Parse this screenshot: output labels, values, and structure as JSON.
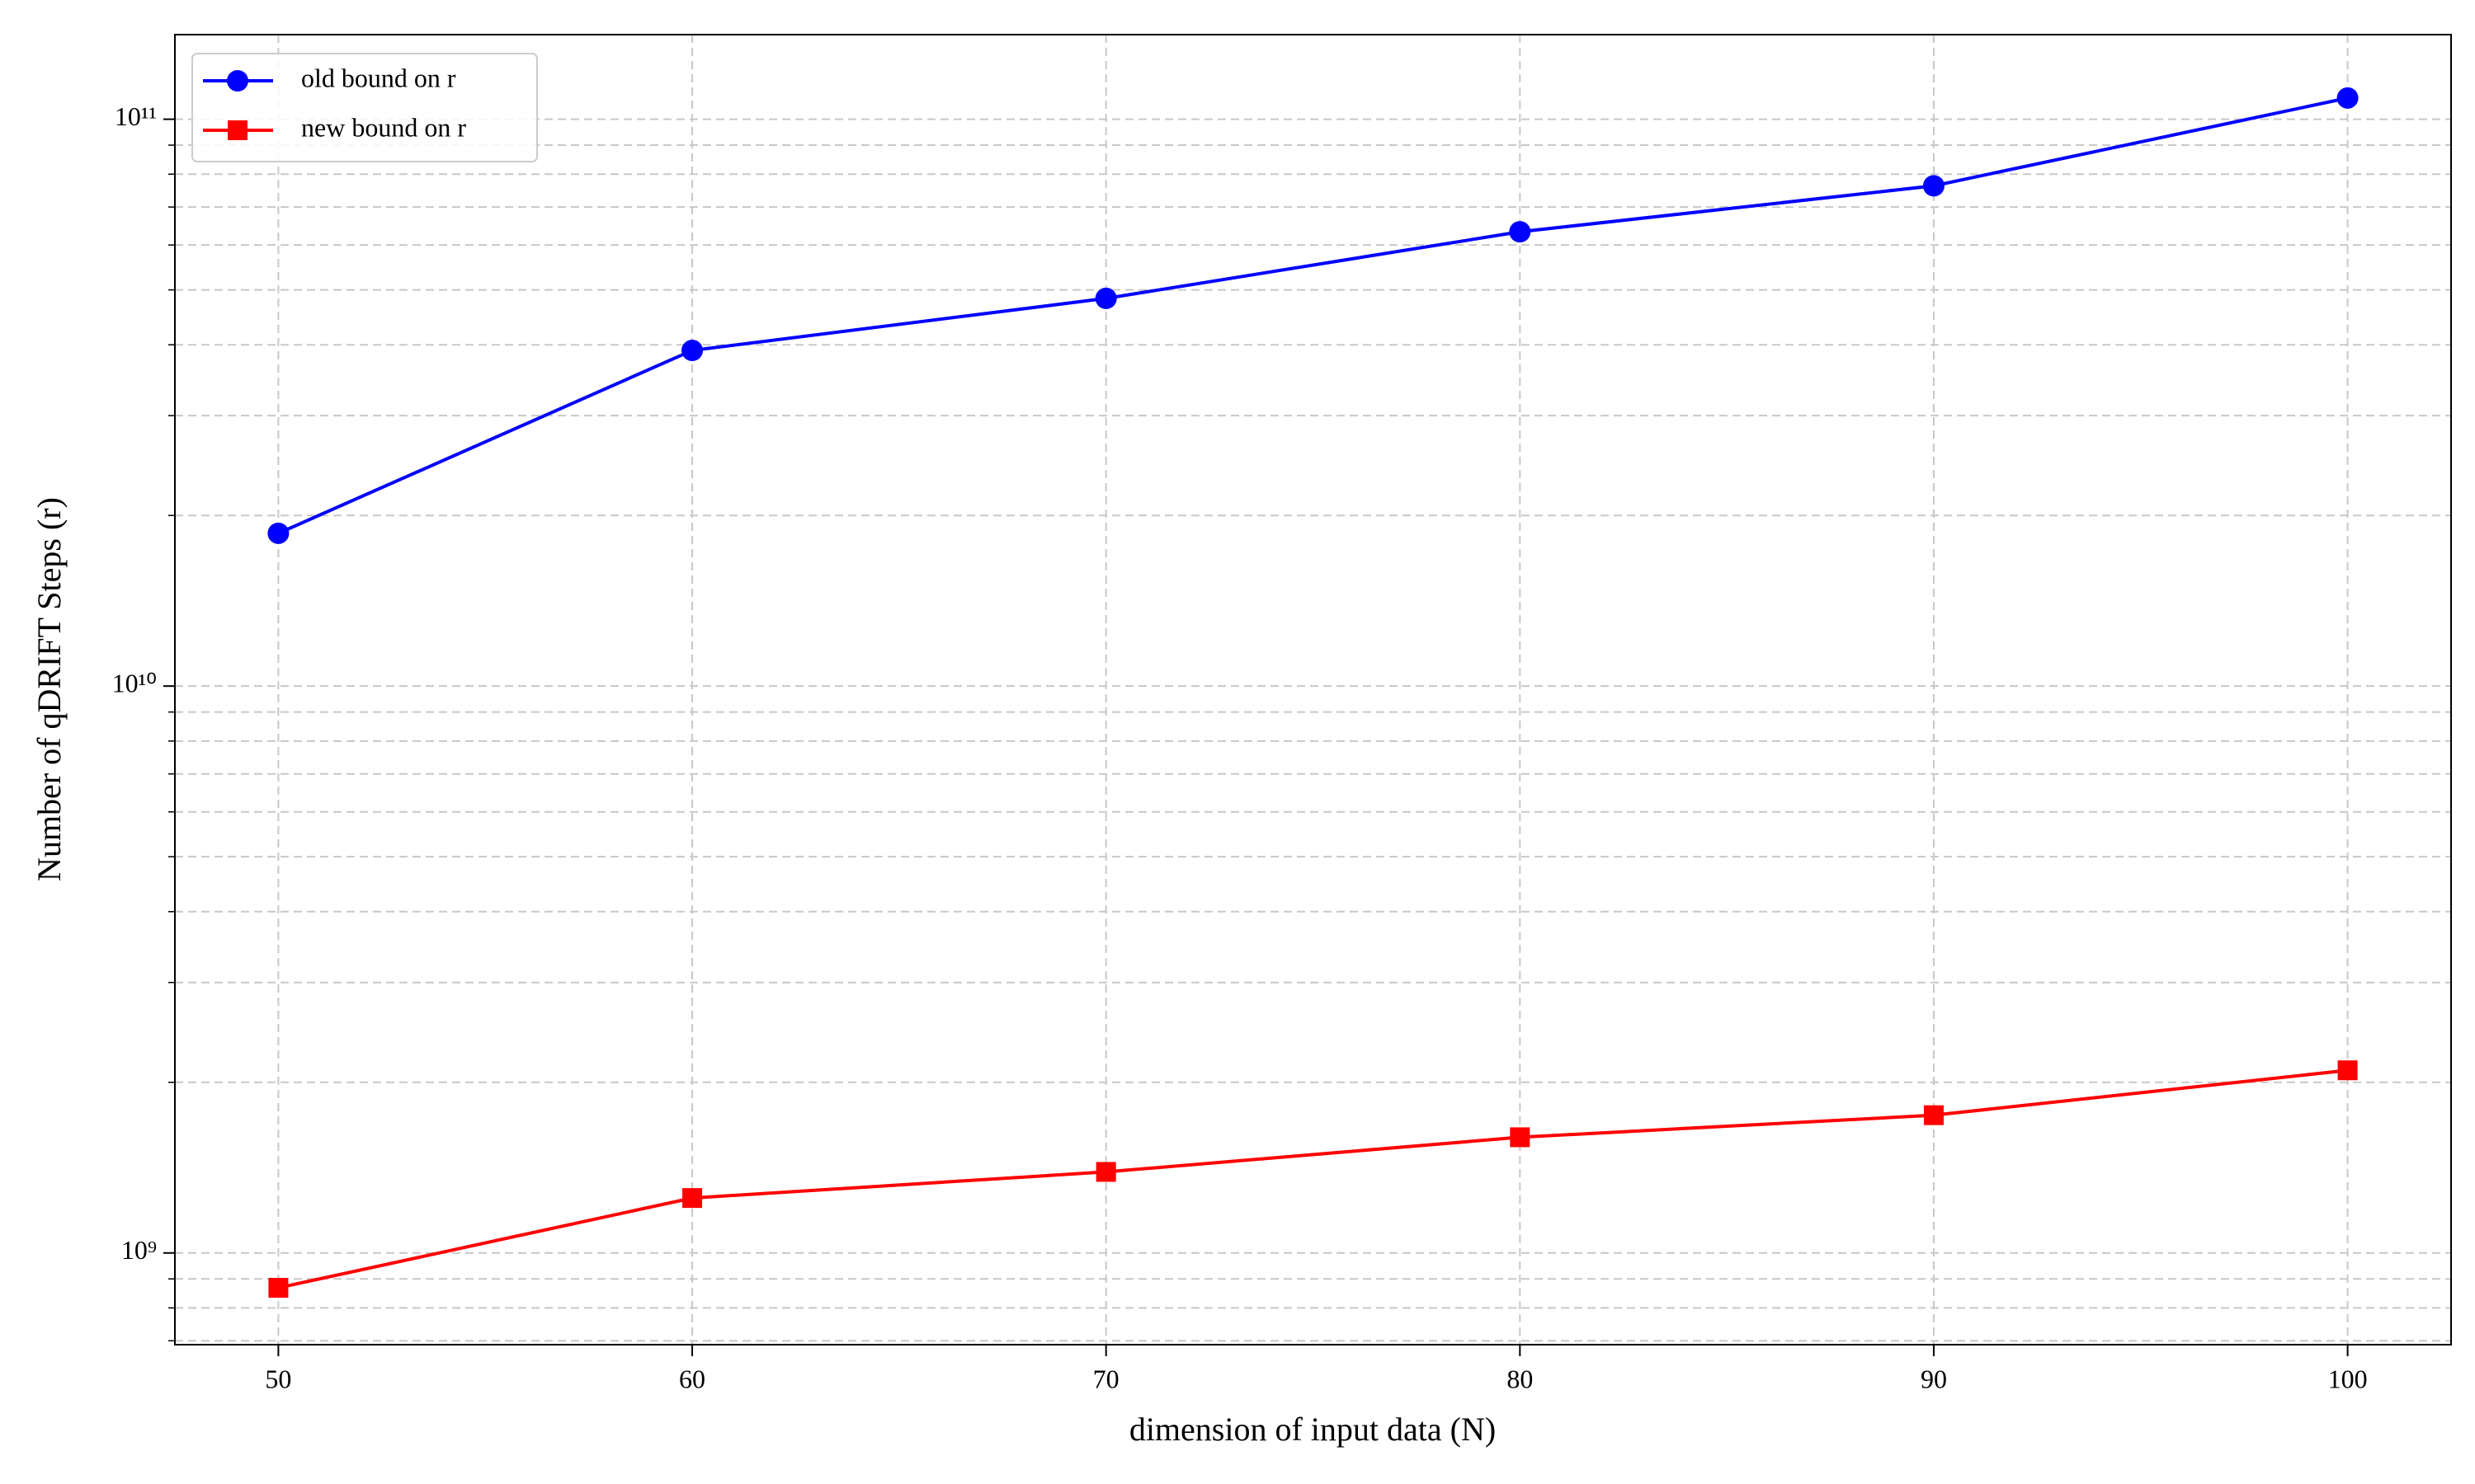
{
  "chart_data": {
    "type": "line",
    "xlabel": "dimension of input data (N)",
    "ylabel": "Number of qDRIFT Steps (r)",
    "x": [
      50,
      60,
      70,
      80,
      90,
      100
    ],
    "series": [
      {
        "name": "old bound on r",
        "color": "#0000ff",
        "marker": "circle",
        "values": [
          18600000000,
          39100000000,
          48300000000,
          63300000000,
          76300000000,
          109000000000
        ]
      },
      {
        "name": "new bound on r",
        "color": "#ff0000",
        "marker": "square",
        "values": [
          868000000,
          1250000000,
          1390000000,
          1600000000,
          1750000000,
          2100000000
        ]
      }
    ],
    "xlim": [
      47.5,
      102.5
    ],
    "xticks": [
      50,
      60,
      70,
      80,
      90,
      100
    ],
    "ylim": [
      689000000,
      141000000000
    ],
    "ylog": true,
    "yticks": [
      {
        "value": 1000000000,
        "label": "10⁹"
      },
      {
        "value": 10000000000,
        "label": "10¹⁰"
      },
      {
        "value": 100000000000,
        "label": "10¹¹"
      }
    ],
    "yminorticks": [
      700000000,
      800000000,
      900000000,
      2000000000,
      3000000000,
      4000000000,
      5000000000,
      6000000000,
      7000000000,
      8000000000,
      9000000000,
      20000000000,
      30000000000,
      40000000000,
      50000000000,
      60000000000,
      70000000000,
      80000000000,
      90000000000
    ],
    "grid": true,
    "legend": "upper left"
  }
}
